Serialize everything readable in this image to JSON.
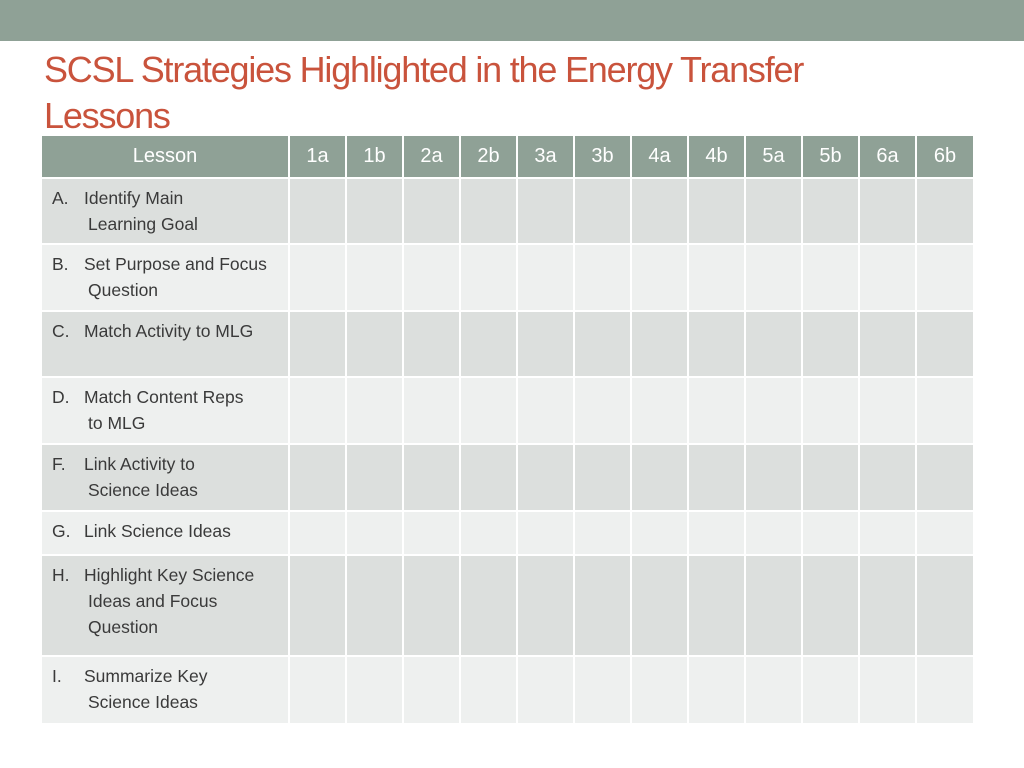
{
  "slide": {
    "title_lines": [
      "SCSL Strategies Highlighted in the Energy Transfer",
      "Lessons"
    ]
  },
  "table": {
    "header_lesson": "Lesson",
    "columns": [
      "1a",
      "1b",
      "2a",
      "2b",
      "3a",
      "3b",
      "4a",
      "4b",
      "5a",
      "5b",
      "6a",
      "6b"
    ],
    "rows": [
      {
        "letter": "A.",
        "lines": [
          "Identify Main",
          "Learning Goal"
        ]
      },
      {
        "letter": "B.",
        "lines": [
          "Set Purpose and Focus",
          "Question"
        ]
      },
      {
        "letter": "C.",
        "lines": [
          "Match Activity to MLG"
        ]
      },
      {
        "letter": "D.",
        "lines": [
          "Match Content Reps",
          "to MLG"
        ]
      },
      {
        "letter": "F.",
        "lines": [
          "Link Activity to",
          "Science Ideas"
        ]
      },
      {
        "letter": "G.",
        "lines": [
          "Link Science Ideas"
        ]
      },
      {
        "letter": "H.",
        "lines": [
          "Highlight Key Science",
          "Ideas and Focus",
          "Question"
        ]
      },
      {
        "letter": "I.",
        "lines": [
          "Summarize Key",
          "Science Ideas"
        ]
      }
    ]
  }
}
